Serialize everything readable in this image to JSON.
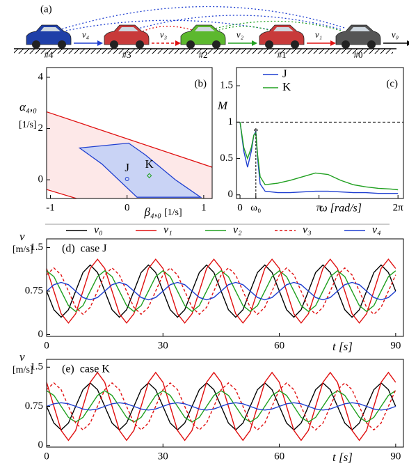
{
  "diagram": {
    "label": "(a)",
    "cars": [
      {
        "label": "#4",
        "speed": "v₄",
        "color": "#1f3fa8",
        "arrow": "#1f3fd0"
      },
      {
        "label": "#3",
        "speed": "v₃",
        "color": "#c83a3a",
        "arrow": "#e01010"
      },
      {
        "label": "#2",
        "speed": "v₂",
        "color": "#5cb82e",
        "arrow": "#20a020"
      },
      {
        "label": "#1",
        "speed": "v₁",
        "color": "#c83a3a",
        "arrow": "#e01010"
      },
      {
        "label": "#0",
        "speed": "v₀",
        "color": "#555555",
        "arrow": "#000000"
      }
    ]
  },
  "chart_data": [
    {
      "type": "region",
      "label": "(b)",
      "ylabel": "α₄,₀",
      "ylabel_unit": "[1/s]",
      "xlabel": "β₄,₀",
      "xlabel_unit": "[1/s]",
      "xlim": [
        -1.05,
        1.11
      ],
      "ylim": [
        -0.73,
        4.38
      ],
      "xticks": [
        -1,
        0,
        1
      ],
      "yticks": [
        0,
        2,
        4
      ],
      "lines": [
        {
          "x": [
            -1.05,
            1.11
          ],
          "y": [
            2.65,
            0.49
          ],
          "color": "#e01010"
        },
        {
          "x": [
            -1.05,
            -0.66
          ],
          "y": [
            -0.38,
            -0.73
          ],
          "color": "#e01010"
        }
      ],
      "region_fill": "#fde8e8",
      "region": {
        "x": [
          -0.62,
          0.02,
          0.24,
          0.63,
          0.96,
          0.13,
          -0.33
        ],
        "y": [
          1.24,
          1.43,
          0.97,
          0,
          -0.68,
          -0.68,
          0.62
        ],
        "color": "#1f3fd0",
        "fill": "#c9d3f5"
      },
      "points": [
        {
          "name": "J",
          "x": 0,
          "y": 0.03,
          "color": "#1f3fd0",
          "marker": "circle"
        },
        {
          "name": "K",
          "x": 0.29,
          "y": 0.16,
          "color": "#20a020",
          "marker": "diamond"
        }
      ]
    },
    {
      "type": "line",
      "label": "(c)",
      "ylabel": "M",
      "xlabel": "ω [rad/s]",
      "xlim": [
        -0.14,
        6.5
      ],
      "ylim": [
        -0.05,
        1.75
      ],
      "xticks": [
        0,
        {
          "value": 0.63,
          "label": "ω₀"
        },
        {
          "value": 3.1416,
          "label": "π"
        },
        {
          "value": 6.2832,
          "label": "2π"
        }
      ],
      "yticks": [
        0,
        0.5,
        1,
        1.5
      ],
      "hline": 1,
      "x": [
        0,
        0.15,
        0.3,
        0.45,
        0.55,
        0.63,
        0.7,
        0.8,
        1.0,
        1.5,
        2,
        2.5,
        3,
        3.5,
        4,
        4.5,
        5,
        5.5,
        6,
        6.2832
      ],
      "series": [
        {
          "name": "J",
          "color": "#1f3fd0",
          "values": [
            1,
            0.6,
            0.38,
            0.6,
            0.82,
            0.87,
            0.5,
            0.15,
            0.05,
            0.03,
            0.03,
            0.04,
            0.05,
            0.05,
            0.04,
            0.03,
            0.03,
            0.02,
            0.02,
            0.02
          ]
        },
        {
          "name": "K",
          "color": "#20a020",
          "values": [
            1,
            0.65,
            0.5,
            0.65,
            0.82,
            0.85,
            0.55,
            0.25,
            0.14,
            0.16,
            0.2,
            0.25,
            0.3,
            0.28,
            0.2,
            0.14,
            0.11,
            0.09,
            0.08,
            0.07
          ]
        }
      ]
    },
    {
      "type": "line",
      "label": "(d)  case J",
      "ylabel": "v",
      "ylabel_unit": "[m/s]",
      "xlabel": "t [s]",
      "xlim": [
        0,
        92
      ],
      "ylim": [
        -0.03,
        1.65
      ],
      "xticks": [
        0,
        30,
        60,
        90
      ],
      "yticks": [
        0,
        0.75,
        1.5
      ],
      "x": [
        0,
        1.875,
        3.75,
        5.625,
        7.5,
        9.375,
        11.25,
        13.125,
        15,
        16.875,
        18.75,
        20.625,
        22.5,
        24.375,
        26.25,
        28.125,
        30,
        31.875,
        33.75,
        35.625,
        37.5,
        39.375,
        41.25,
        43.125,
        45,
        46.875,
        48.75,
        50.625,
        52.5,
        54.375,
        56.25,
        58.125,
        60,
        61.875,
        63.75,
        65.625,
        67.5,
        69.375,
        71.25,
        73.125,
        75,
        76.875,
        78.75,
        80.625,
        82.5,
        84.375,
        86.25,
        88.125,
        90
      ],
      "series": [
        {
          "name": "v₀",
          "color": "#000000",
          "values": [
            0.75,
            0.43,
            0.3,
            0.43,
            0.75,
            1.07,
            1.2,
            1.07,
            0.75,
            0.43,
            0.3,
            0.43,
            0.75,
            1.07,
            1.2,
            1.07,
            0.75,
            0.43,
            0.3,
            0.43,
            0.75,
            1.07,
            1.2,
            1.07,
            0.75,
            0.43,
            0.3,
            0.43,
            0.75,
            1.07,
            1.2,
            1.07,
            0.75,
            0.43,
            0.3,
            0.43,
            0.75,
            1.07,
            1.2,
            1.07,
            0.75,
            0.43,
            0.3,
            0.43,
            0.75,
            1.07,
            1.2,
            1.07,
            0.75
          ]
        },
        {
          "name": "v₁",
          "color": "#e01010",
          "values": [
            1.14,
            0.75,
            0.36,
            0.2,
            0.36,
            0.75,
            1.14,
            1.3,
            1.14,
            0.75,
            0.36,
            0.2,
            0.36,
            0.75,
            1.14,
            1.3,
            1.14,
            0.75,
            0.36,
            0.2,
            0.36,
            0.75,
            1.14,
            1.3,
            1.14,
            0.75,
            0.36,
            0.2,
            0.36,
            0.75,
            1.14,
            1.3,
            1.14,
            0.75,
            0.36,
            0.2,
            0.36,
            0.75,
            1.14,
            1.3,
            1.14,
            0.75,
            0.36,
            0.2,
            0.36,
            0.75,
            1.14,
            1.3,
            1.14
          ]
        },
        {
          "name": "v₂",
          "color": "#20a020",
          "values": [
            1.1,
            1.0,
            0.75,
            0.5,
            0.4,
            0.5,
            0.75,
            1.0,
            1.1,
            1.0,
            0.75,
            0.5,
            0.4,
            0.5,
            0.75,
            1.0,
            1.1,
            1.0,
            0.75,
            0.5,
            0.4,
            0.5,
            0.75,
            1.0,
            1.1,
            1.0,
            0.75,
            0.5,
            0.4,
            0.5,
            0.75,
            1.0,
            1.1,
            1.0,
            0.75,
            0.5,
            0.4,
            0.5,
            0.75,
            1.0,
            1.1,
            1.0,
            0.75,
            0.5,
            0.4,
            0.5,
            0.75,
            1.0,
            1.1
          ]
        },
        {
          "name": "v₃",
          "color": "#e01010",
          "dash": true,
          "values": [
            1.03,
            1.15,
            1.03,
            0.75,
            0.47,
            0.35,
            0.47,
            0.75,
            1.03,
            1.15,
            1.03,
            0.75,
            0.47,
            0.35,
            0.47,
            0.75,
            1.03,
            1.15,
            1.03,
            0.75,
            0.47,
            0.35,
            0.47,
            0.75,
            1.03,
            1.15,
            1.03,
            0.75,
            0.47,
            0.35,
            0.47,
            0.75,
            1.03,
            1.15,
            1.03,
            0.75,
            0.47,
            0.35,
            0.47,
            0.75,
            1.03,
            1.15,
            1.03,
            0.75,
            0.47,
            0.35,
            0.47,
            0.75,
            1.03
          ]
        },
        {
          "name": "v₄",
          "color": "#1f3fd0",
          "values": [
            0.75,
            0.86,
            0.9,
            0.86,
            0.75,
            0.64,
            0.6,
            0.64,
            0.75,
            0.86,
            0.9,
            0.86,
            0.75,
            0.64,
            0.6,
            0.64,
            0.75,
            0.86,
            0.9,
            0.86,
            0.75,
            0.64,
            0.6,
            0.64,
            0.75,
            0.86,
            0.9,
            0.86,
            0.75,
            0.64,
            0.6,
            0.64,
            0.75,
            0.86,
            0.9,
            0.86,
            0.75,
            0.64,
            0.6,
            0.64,
            0.75,
            0.86,
            0.9,
            0.86,
            0.75,
            0.64,
            0.6,
            0.64,
            0.75
          ]
        }
      ]
    },
    {
      "type": "line",
      "label": "(e)  case K",
      "ylabel": "v",
      "ylabel_unit": "[m/s]",
      "xlabel": "t [s]",
      "xlim": [
        0,
        92
      ],
      "ylim": [
        -0.03,
        1.65
      ],
      "xticks": [
        0,
        30,
        60,
        90
      ],
      "yticks": [
        0,
        0.75,
        1.5
      ],
      "x": [
        0,
        1.875,
        3.75,
        5.625,
        7.5,
        9.375,
        11.25,
        13.125,
        15,
        16.875,
        18.75,
        20.625,
        22.5,
        24.375,
        26.25,
        28.125,
        30,
        31.875,
        33.75,
        35.625,
        37.5,
        39.375,
        41.25,
        43.125,
        45,
        46.875,
        48.75,
        50.625,
        52.5,
        54.375,
        56.25,
        58.125,
        60,
        61.875,
        63.75,
        65.625,
        67.5,
        69.375,
        71.25,
        73.125,
        75,
        76.875,
        78.75,
        80.625,
        82.5,
        84.375,
        86.25,
        88.125,
        90
      ],
      "series": [
        {
          "color": "#000000",
          "values": [
            0.75,
            0.43,
            0.3,
            0.43,
            0.75,
            1.07,
            1.2,
            1.07,
            0.75,
            0.43,
            0.3,
            0.43,
            0.75,
            1.07,
            1.2,
            1.07,
            0.75,
            0.43,
            0.3,
            0.43,
            0.75,
            1.07,
            1.2,
            1.07,
            0.75,
            0.43,
            0.3,
            0.43,
            0.75,
            1.07,
            1.2,
            1.07,
            0.75,
            0.43,
            0.3,
            0.43,
            0.75,
            1.07,
            1.2,
            1.07,
            0.75,
            0.43,
            0.3,
            0.43,
            0.75,
            1.07,
            1.2,
            1.07,
            0.75
          ]
        },
        {
          "color": "#e01010",
          "values": [
            1.21,
            0.75,
            0.29,
            0.1,
            0.29,
            0.75,
            1.21,
            1.4,
            1.21,
            0.75,
            0.29,
            0.1,
            0.29,
            0.75,
            1.21,
            1.4,
            1.21,
            0.75,
            0.29,
            0.1,
            0.29,
            0.75,
            1.21,
            1.4,
            1.21,
            0.75,
            0.29,
            0.1,
            0.29,
            0.75,
            1.21,
            1.4,
            1.21,
            0.75,
            0.29,
            0.1,
            0.29,
            0.75,
            1.21,
            1.4,
            1.21,
            0.75,
            0.29,
            0.1,
            0.29,
            0.75,
            1.21,
            1.4,
            1.21
          ]
        },
        {
          "color": "#20a020",
          "values": [
            1.05,
            0.96,
            0.75,
            0.54,
            0.45,
            0.54,
            0.75,
            0.96,
            1.05,
            0.96,
            0.75,
            0.54,
            0.45,
            0.54,
            0.75,
            0.96,
            1.05,
            0.96,
            0.75,
            0.54,
            0.45,
            0.54,
            0.75,
            0.96,
            1.05,
            0.96,
            0.75,
            0.54,
            0.45,
            0.54,
            0.75,
            0.96,
            1.05,
            0.96,
            0.75,
            0.54,
            0.45,
            0.54,
            0.75,
            0.96,
            1.05,
            0.96,
            0.75,
            0.54,
            0.45,
            0.54,
            0.75,
            0.96,
            1.05
          ]
        },
        {
          "color": "#e01010",
          "dash": true,
          "values": [
            1.07,
            1.2,
            1.07,
            0.75,
            0.43,
            0.3,
            0.43,
            0.75,
            1.07,
            1.2,
            1.07,
            0.75,
            0.43,
            0.3,
            0.43,
            0.75,
            1.07,
            1.2,
            1.07,
            0.75,
            0.43,
            0.3,
            0.43,
            0.75,
            1.07,
            1.2,
            1.07,
            0.75,
            0.43,
            0.3,
            0.43,
            0.75,
            1.07,
            1.2,
            1.07,
            0.75,
            0.43,
            0.3,
            0.43,
            0.75,
            1.07,
            1.2,
            1.07,
            0.75,
            0.43,
            0.3,
            0.43,
            0.75,
            1.07
          ]
        },
        {
          "color": "#1f3fd0",
          "values": [
            0.75,
            0.8,
            0.82,
            0.8,
            0.75,
            0.7,
            0.68,
            0.7,
            0.75,
            0.8,
            0.82,
            0.8,
            0.75,
            0.7,
            0.68,
            0.7,
            0.75,
            0.8,
            0.82,
            0.8,
            0.75,
            0.7,
            0.68,
            0.7,
            0.75,
            0.8,
            0.82,
            0.8,
            0.75,
            0.7,
            0.68,
            0.7,
            0.75,
            0.8,
            0.82,
            0.8,
            0.75,
            0.7,
            0.68,
            0.7,
            0.75,
            0.8,
            0.82,
            0.8,
            0.75,
            0.7,
            0.68,
            0.7,
            0.75
          ]
        }
      ]
    }
  ]
}
